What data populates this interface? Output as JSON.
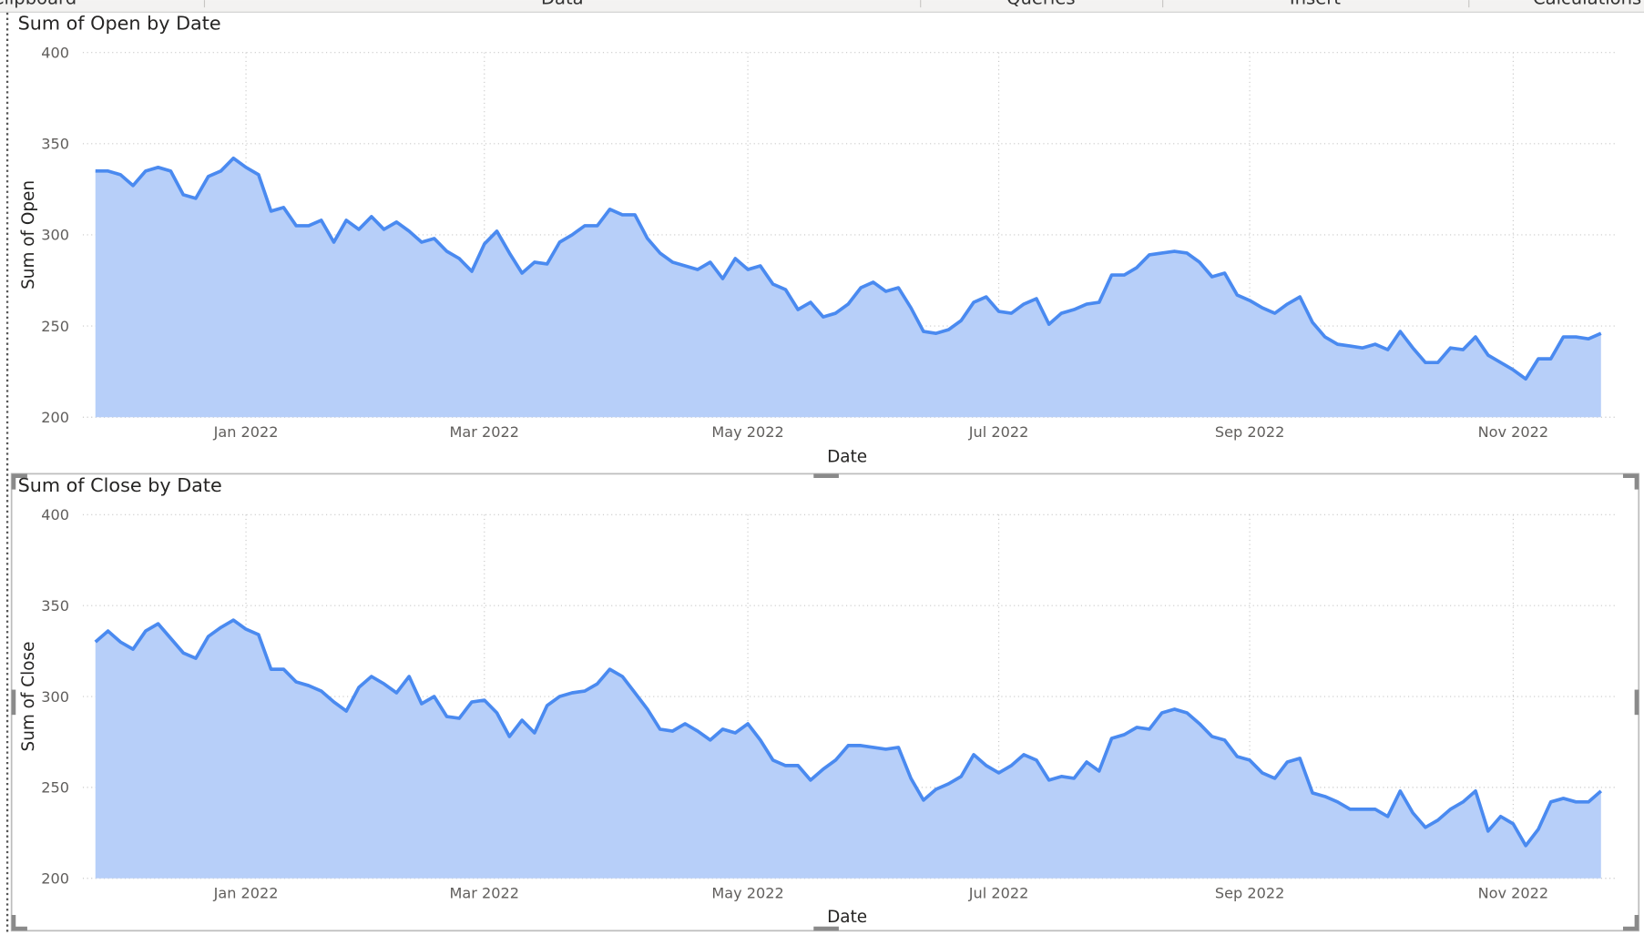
{
  "ribbon": [
    "Clipboard",
    "Data",
    "Queries",
    "Insert",
    "Calculations"
  ],
  "chart_data": [
    {
      "type": "area",
      "title": "Sum of Open by Date",
      "x_label": "Date",
      "y_label": "Sum of Open",
      "color": "#4a8af0",
      "fill": "#b7cff9",
      "grid": true,
      "ylim": [
        200,
        400
      ],
      "yticks": [
        200,
        250,
        300,
        350,
        400
      ],
      "categories": [
        null,
        null,
        null,
        null,
        null,
        null,
        null,
        null,
        null,
        null,
        null,
        null,
        "Jan 2022",
        null,
        null,
        null,
        null,
        null,
        null,
        null,
        null,
        null,
        null,
        null,
        null,
        null,
        null,
        null,
        null,
        null,
        null,
        "Mar 2022",
        null,
        null,
        null,
        null,
        null,
        null,
        null,
        null,
        null,
        null,
        null,
        null,
        null,
        null,
        null,
        null,
        null,
        null,
        null,
        null,
        "May 2022",
        null,
        null,
        null,
        null,
        null,
        null,
        null,
        null,
        null,
        null,
        null,
        null,
        null,
        null,
        null,
        null,
        null,
        null,
        null,
        "Jul 2022",
        null,
        null,
        null,
        null,
        null,
        null,
        null,
        null,
        null,
        null,
        null,
        null,
        null,
        null,
        null,
        null,
        null,
        null,
        null,
        "Sep 2022",
        null,
        null,
        null,
        null,
        null,
        null,
        null,
        null,
        null,
        null,
        null,
        null,
        null,
        null,
        null,
        null,
        null,
        null,
        null,
        null,
        "Nov 2022",
        null,
        null,
        null,
        null,
        null,
        null,
        null
      ],
      "values": [
        335,
        335,
        333,
        327,
        335,
        337,
        335,
        322,
        320,
        332,
        335,
        342,
        337,
        333,
        313,
        315,
        305,
        305,
        308,
        296,
        308,
        303,
        310,
        303,
        307,
        302,
        296,
        298,
        291,
        287,
        280,
        295,
        302,
        290,
        279,
        285,
        284,
        296,
        300,
        305,
        305,
        314,
        311,
        311,
        298,
        290,
        285,
        283,
        281,
        285,
        276,
        287,
        281,
        283,
        273,
        270,
        259,
        263,
        255,
        257,
        262,
        271,
        274,
        269,
        271,
        260,
        247,
        246,
        248,
        253,
        263,
        266,
        258,
        257,
        262,
        265,
        251,
        257,
        259,
        262,
        263,
        278,
        278,
        282,
        289,
        290,
        291,
        290,
        285,
        277,
        279,
        267,
        264,
        260,
        257,
        262,
        266,
        252,
        244,
        240,
        239,
        238,
        240,
        237,
        247,
        238,
        230,
        230,
        238,
        237,
        244,
        234,
        230,
        226,
        221,
        232,
        232,
        244,
        244,
        243,
        246
      ]
    },
    {
      "type": "area",
      "title": "Sum of Close by Date",
      "x_label": "Date",
      "y_label": "Sum of Close",
      "color": "#4a8af0",
      "fill": "#b7cff9",
      "grid": true,
      "ylim": [
        200,
        400
      ],
      "yticks": [
        200,
        250,
        300,
        350,
        400
      ],
      "categories": [
        null,
        null,
        null,
        null,
        null,
        null,
        null,
        null,
        null,
        null,
        null,
        null,
        "Jan 2022",
        null,
        null,
        null,
        null,
        null,
        null,
        null,
        null,
        null,
        null,
        null,
        null,
        null,
        null,
        null,
        null,
        null,
        null,
        "Mar 2022",
        null,
        null,
        null,
        null,
        null,
        null,
        null,
        null,
        null,
        null,
        null,
        null,
        null,
        null,
        null,
        null,
        null,
        null,
        null,
        null,
        "May 2022",
        null,
        null,
        null,
        null,
        null,
        null,
        null,
        null,
        null,
        null,
        null,
        null,
        null,
        null,
        null,
        null,
        null,
        null,
        null,
        "Jul 2022",
        null,
        null,
        null,
        null,
        null,
        null,
        null,
        null,
        null,
        null,
        null,
        null,
        null,
        null,
        null,
        null,
        null,
        null,
        null,
        "Sep 2022",
        null,
        null,
        null,
        null,
        null,
        null,
        null,
        null,
        null,
        null,
        null,
        null,
        null,
        null,
        null,
        null,
        null,
        null,
        null,
        null,
        "Nov 2022",
        null,
        null,
        null,
        null,
        null,
        null,
        null
      ],
      "values": [
        330,
        336,
        330,
        326,
        336,
        340,
        332,
        324,
        321,
        333,
        338,
        342,
        337,
        334,
        315,
        315,
        308,
        306,
        303,
        297,
        292,
        305,
        311,
        307,
        302,
        311,
        296,
        300,
        289,
        288,
        297,
        298,
        291,
        278,
        287,
        280,
        295,
        300,
        302,
        303,
        307,
        315,
        311,
        302,
        293,
        282,
        281,
        285,
        281,
        276,
        282,
        280,
        285,
        276,
        265,
        262,
        262,
        254,
        260,
        265,
        273,
        273,
        272,
        271,
        272,
        255,
        243,
        249,
        252,
        256,
        268,
        262,
        258,
        262,
        268,
        265,
        254,
        256,
        255,
        264,
        259,
        277,
        279,
        283,
        282,
        291,
        293,
        291,
        285,
        278,
        276,
        267,
        265,
        258,
        255,
        264,
        266,
        247,
        245,
        242,
        238,
        238,
        238,
        234,
        248,
        236,
        228,
        232,
        238,
        242,
        248,
        226,
        234,
        230,
        218,
        227,
        242,
        244,
        242,
        242,
        248
      ]
    }
  ]
}
